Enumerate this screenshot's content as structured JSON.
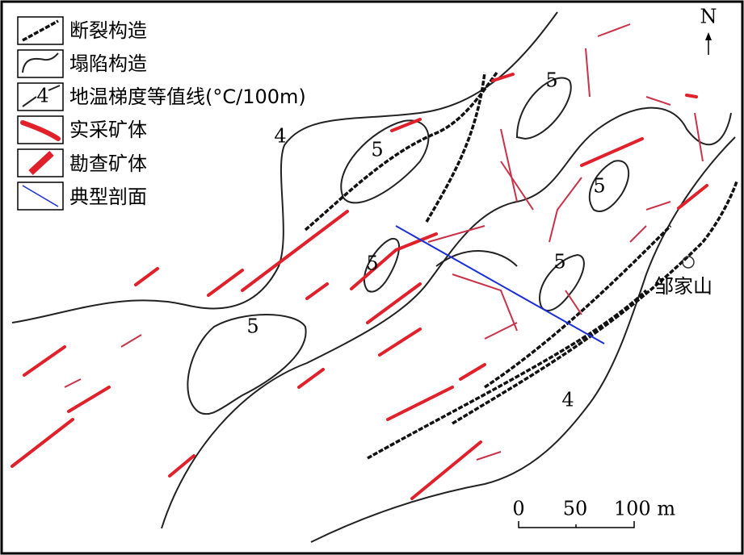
{
  "legend": [
    {
      "label": "断裂构造"
    },
    {
      "label": "塌陷构造"
    },
    {
      "label": "地温梯度等值线(°C/100m)",
      "symbol_label": "4"
    },
    {
      "label": "实采矿体"
    },
    {
      "label": "勘查矿体"
    },
    {
      "label": "典型剖面"
    }
  ],
  "north": "N",
  "place": "邹家山",
  "contour_labels": [
    "4",
    "4",
    "5",
    "5",
    "5",
    "5",
    "5",
    "5"
  ],
  "scale_bar": [
    "0",
    "50",
    "100 m"
  ]
}
